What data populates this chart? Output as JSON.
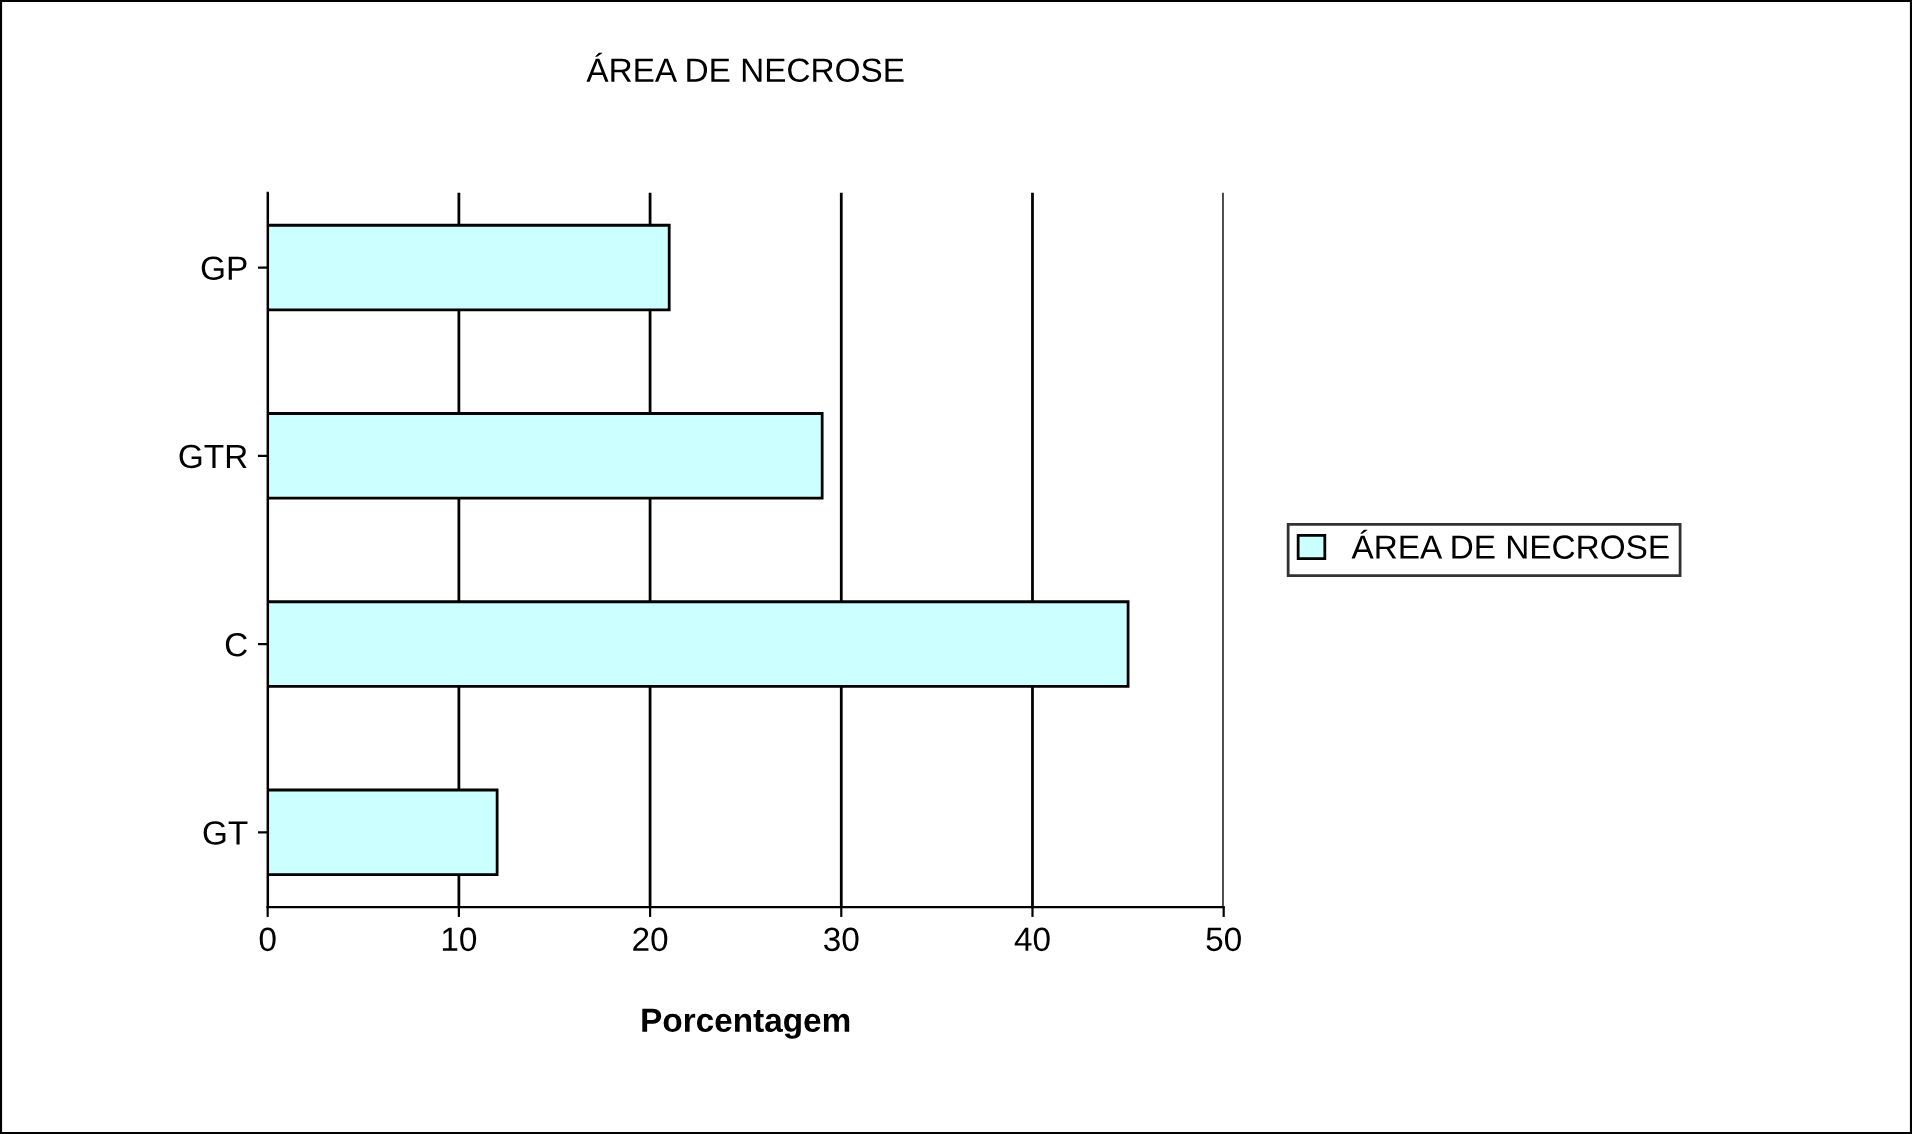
{
  "chart_data": {
    "type": "bar",
    "orientation": "horizontal",
    "title": "ÁREA DE NECROSE",
    "xlabel": "Porcentagem",
    "categories": [
      "GP",
      "GTR",
      "C",
      "GT"
    ],
    "series": [
      {
        "name": "ÁREA DE NECROSE",
        "color": "#ccffff",
        "values": [
          21,
          29,
          45,
          12
        ]
      }
    ],
    "xlim": [
      0,
      50
    ],
    "xticks": [
      0,
      10,
      20,
      30,
      40,
      50
    ],
    "grid": "x",
    "legend": "right"
  }
}
